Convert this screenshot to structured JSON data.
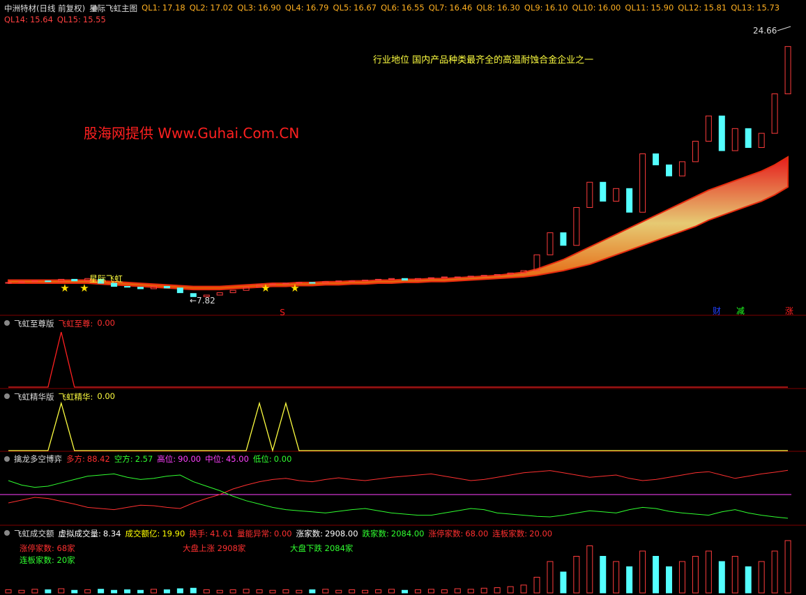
{
  "header": {
    "stock": "中洲特材(日线 前复权)",
    "indicator": "星际飞虹主图",
    "ql": [
      {
        "name": "QL1:",
        "value": "17.18"
      },
      {
        "name": "QL2:",
        "value": "17.02"
      },
      {
        "name": "QL3:",
        "value": "16.90"
      },
      {
        "name": "QL4:",
        "value": "16.79"
      },
      {
        "name": "QL5:",
        "value": "16.67"
      },
      {
        "name": "QL6:",
        "value": "16.55"
      },
      {
        "name": "QL7:",
        "value": "16.46"
      },
      {
        "name": "QL8:",
        "value": "16.30"
      },
      {
        "name": "QL9:",
        "value": "16.10"
      },
      {
        "name": "QL10:",
        "value": "16.00"
      },
      {
        "name": "QL11:",
        "value": "15.90"
      },
      {
        "name": "QL12:",
        "value": "15.81"
      },
      {
        "name": "QL13:",
        "value": "15.73"
      },
      {
        "name": "QL14:",
        "value": "15.64"
      },
      {
        "name": "QL15:",
        "value": "15.55"
      }
    ]
  },
  "annotations": {
    "note": "行业地位 国内产品种类最齐全的高温耐蚀合金企业之一",
    "watermark": "股海网提供 Www.Guhai.Com.CN",
    "high_label": "24.66",
    "low_label": "←7.82",
    "star_label": "星际飞虹",
    "s_mark": "S",
    "badges": [
      "财",
      "减",
      "涨"
    ]
  },
  "price": {
    "ylim": [
      7.3,
      25.2
    ],
    "open": [
      8.8,
      8.85,
      8.9,
      8.95,
      8.9,
      9.05,
      8.95,
      9.05,
      8.8,
      8.6,
      8.55,
      8.45,
      8.6,
      8.5,
      8.15,
      7.95,
      8.05,
      8.2,
      8.35,
      8.55,
      8.7,
      8.75,
      8.8,
      8.85,
      8.8,
      8.9,
      8.95,
      8.95,
      9.0,
      9.05,
      9.1,
      9.0,
      9.1,
      9.15,
      9.2,
      9.2,
      9.25,
      9.3,
      9.35,
      9.45,
      9.6,
      10.6,
      12.0,
      11.2,
      13.6,
      15.2,
      14.0,
      14.8,
      13.3,
      17.0,
      16.3,
      15.6,
      16.5,
      17.8,
      19.4,
      17.2,
      18.6,
      17.4,
      18.3,
      20.8
    ],
    "close": [
      8.85,
      8.9,
      8.95,
      8.9,
      9.05,
      8.95,
      9.1,
      8.8,
      8.6,
      8.55,
      8.45,
      8.6,
      8.5,
      8.2,
      7.95,
      8.05,
      8.2,
      8.35,
      8.55,
      8.7,
      8.75,
      8.8,
      8.85,
      8.8,
      8.9,
      8.95,
      8.95,
      9.0,
      9.05,
      9.1,
      9.0,
      9.1,
      9.15,
      9.2,
      9.2,
      9.25,
      9.3,
      9.35,
      9.45,
      9.6,
      10.6,
      12.0,
      11.2,
      13.6,
      15.2,
      14.0,
      14.8,
      13.3,
      17.0,
      16.3,
      15.6,
      16.5,
      17.8,
      19.4,
      17.2,
      18.6,
      17.4,
      18.3,
      20.8,
      23.8
    ],
    "ribbon_upper": [
      9.0,
      9.0,
      9.0,
      9.0,
      9.0,
      9.0,
      9.0,
      8.95,
      8.9,
      8.85,
      8.8,
      8.75,
      8.7,
      8.65,
      8.6,
      8.6,
      8.6,
      8.65,
      8.7,
      8.75,
      8.8,
      8.8,
      8.85,
      8.85,
      8.9,
      8.9,
      8.95,
      8.95,
      9.0,
      9.0,
      9.05,
      9.05,
      9.1,
      9.1,
      9.15,
      9.2,
      9.25,
      9.3,
      9.4,
      9.5,
      9.7,
      10.0,
      10.3,
      10.7,
      11.1,
      11.5,
      11.9,
      12.3,
      12.7,
      13.1,
      13.5,
      13.9,
      14.3,
      14.7,
      15.0,
      15.3,
      15.6,
      15.9,
      16.3,
      16.8
    ],
    "ribbon_lower": [
      8.8,
      8.8,
      8.8,
      8.8,
      8.8,
      8.8,
      8.8,
      8.75,
      8.7,
      8.65,
      8.6,
      8.55,
      8.5,
      8.45,
      8.4,
      8.4,
      8.4,
      8.45,
      8.5,
      8.55,
      8.6,
      8.6,
      8.65,
      8.65,
      8.7,
      8.7,
      8.75,
      8.75,
      8.8,
      8.8,
      8.85,
      8.85,
      8.9,
      8.9,
      8.95,
      9.0,
      9.05,
      9.1,
      9.15,
      9.2,
      9.3,
      9.45,
      9.6,
      9.8,
      10.0,
      10.3,
      10.6,
      10.9,
      11.2,
      11.5,
      11.8,
      12.1,
      12.4,
      12.8,
      13.1,
      13.4,
      13.7,
      14.0,
      14.4,
      14.9
    ]
  },
  "panel_supreme": {
    "title": "飞虹至尊版",
    "label": "飞虹至尊:",
    "value": "0.00",
    "values": [
      0,
      0,
      0,
      0,
      1,
      0,
      0,
      0,
      0,
      0,
      0,
      0,
      0,
      0,
      0,
      0,
      0,
      0,
      0,
      0,
      0,
      0,
      0,
      0,
      0,
      0,
      0,
      0,
      0,
      0,
      0,
      0,
      0,
      0,
      0,
      0,
      0,
      0,
      0,
      0,
      0,
      0,
      0,
      0,
      0,
      0,
      0,
      0,
      0,
      0,
      0,
      0,
      0,
      0,
      0,
      0,
      0,
      0,
      0,
      0
    ]
  },
  "panel_essence": {
    "title": "飞虹精华版",
    "label": "飞虹精华:",
    "value": "0.00",
    "values": [
      0,
      0,
      0,
      0,
      1,
      0,
      0,
      0,
      0,
      0,
      0,
      0,
      0,
      0,
      0,
      0,
      0,
      0,
      0,
      1,
      0,
      1,
      0,
      0,
      0,
      0,
      0,
      0,
      0,
      0,
      0,
      0,
      0,
      0,
      0,
      0,
      0,
      0,
      0,
      0,
      0,
      0,
      0,
      0,
      0,
      0,
      0,
      0,
      0,
      0,
      0,
      0,
      0,
      0,
      0,
      0,
      0,
      0,
      0,
      0
    ]
  },
  "panel_battle": {
    "title": "擒龙多空博弈",
    "ylim": [
      0,
      100
    ],
    "mid": 45,
    "items": [
      {
        "label": "多方:",
        "value": "88.42",
        "color": "#ff3030"
      },
      {
        "label": "空方:",
        "value": "2.57",
        "color": "#30ff30"
      },
      {
        "label": "高位:",
        "value": "90.00",
        "color": "#ff40ff"
      },
      {
        "label": "中位:",
        "value": "45.00",
        "color": "#ff40ff"
      },
      {
        "label": "低位:",
        "value": "0.00",
        "color": "#30ff30"
      }
    ],
    "bull": [
      30,
      35,
      40,
      38,
      33,
      28,
      22,
      20,
      18,
      22,
      26,
      25,
      22,
      20,
      30,
      38,
      45,
      55,
      62,
      68,
      72,
      74,
      70,
      68,
      72,
      75,
      72,
      70,
      73,
      76,
      78,
      80,
      82,
      78,
      74,
      70,
      72,
      76,
      80,
      84,
      86,
      88,
      84,
      80,
      76,
      78,
      80,
      74,
      70,
      72,
      76,
      80,
      84,
      86,
      80,
      74,
      78,
      82,
      85,
      88.42
    ],
    "bear": [
      70,
      62,
      58,
      60,
      66,
      72,
      78,
      80,
      82,
      76,
      72,
      74,
      78,
      80,
      68,
      60,
      52,
      42,
      34,
      28,
      22,
      18,
      16,
      14,
      12,
      15,
      18,
      20,
      16,
      12,
      10,
      8,
      8,
      12,
      16,
      20,
      18,
      12,
      10,
      8,
      6,
      5,
      8,
      12,
      16,
      14,
      12,
      18,
      22,
      20,
      15,
      12,
      10,
      8,
      14,
      18,
      12,
      8,
      5,
      2.57
    ]
  },
  "panel_volume": {
    "title": "飞虹成交额",
    "ylim": [
      0,
      10
    ],
    "items": [
      {
        "label": "虚拟成交量:",
        "value": "8.34",
        "color": "#ffffff"
      },
      {
        "label": "成交额亿:",
        "value": "19.90",
        "color": "#ffff00"
      },
      {
        "label": "换手:",
        "value": "41.61",
        "color": "#ff3030"
      },
      {
        "label": "量能异常:",
        "value": "0.00",
        "color": "#ff3030"
      },
      {
        "label": "涨家数:",
        "value": "2908.00",
        "color": "#ffffff"
      },
      {
        "label": "跌家数:",
        "value": "2084.00",
        "color": "#30ff30"
      },
      {
        "label": "涨停家数:",
        "value": "68.00",
        "color": "#ff3030"
      },
      {
        "label": "连板家数:",
        "value": "20.00",
        "color": "#ff3030"
      }
    ],
    "notes": [
      "涨停家数: 68家",
      "连板家数: 20家",
      "大盘上涨 2908家",
      "大盘下跌 2084家"
    ],
    "values": [
      0.6,
      0.5,
      0.7,
      0.6,
      0.8,
      0.5,
      0.6,
      0.7,
      0.5,
      0.6,
      0.5,
      0.7,
      0.6,
      0.8,
      0.9,
      0.6,
      0.5,
      0.6,
      0.7,
      0.6,
      0.5,
      0.6,
      0.5,
      0.6,
      0.7,
      0.5,
      0.6,
      0.5,
      0.6,
      0.7,
      0.5,
      0.6,
      0.7,
      0.6,
      0.8,
      0.7,
      0.9,
      1.0,
      1.2,
      1.5,
      3,
      6,
      4,
      7,
      9,
      7,
      6,
      5,
      8,
      7,
      5,
      6,
      7,
      8,
      6,
      7,
      5,
      6,
      8,
      10
    ]
  }
}
